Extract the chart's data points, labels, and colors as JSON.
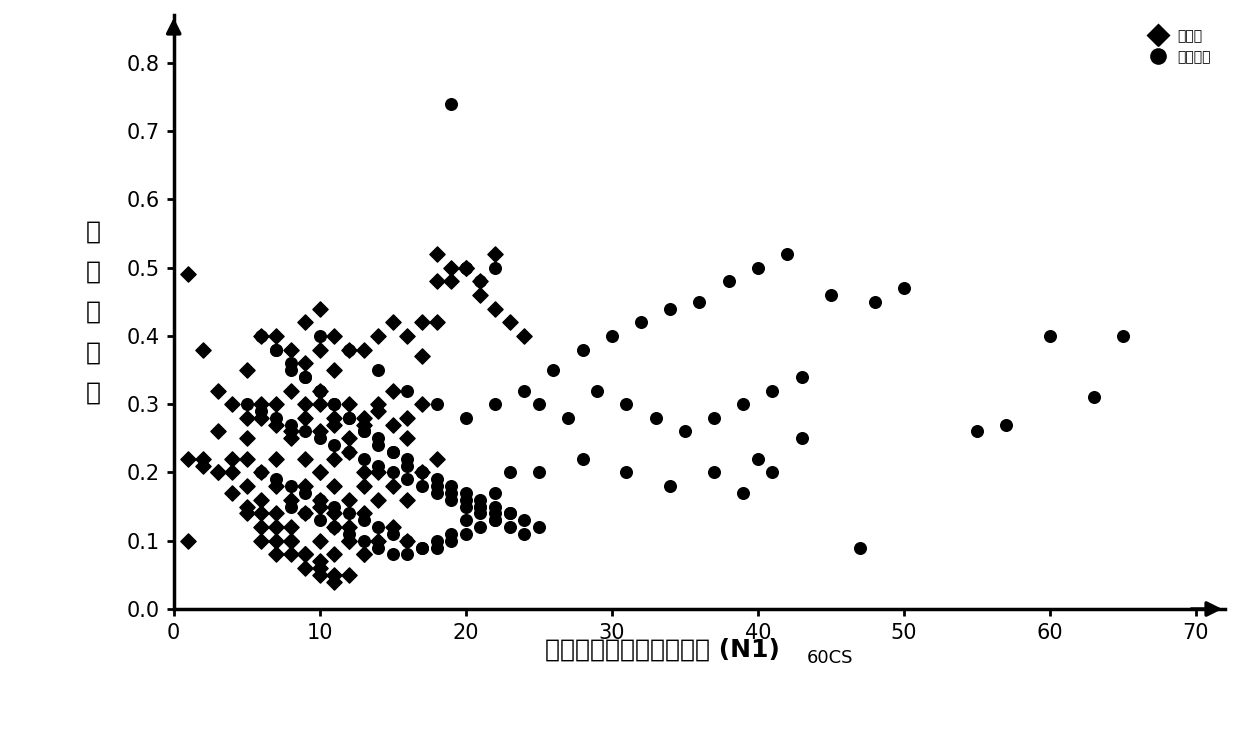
{
  "liquefaction_x": [
    1,
    2,
    3,
    5,
    5,
    6,
    6,
    7,
    7,
    7,
    8,
    8,
    8,
    9,
    9,
    9,
    9,
    10,
    10,
    10,
    10,
    10,
    10,
    11,
    11,
    11,
    11,
    12,
    12,
    12,
    13,
    13,
    13,
    14,
    14,
    15,
    15,
    16,
    16,
    17,
    17,
    18,
    19,
    20,
    21,
    22,
    3,
    4,
    5,
    6,
    7,
    8,
    9,
    10,
    11,
    12,
    13,
    14,
    15,
    16,
    17,
    18,
    4,
    5,
    6,
    7,
    8,
    9,
    10,
    11,
    12,
    13,
    14,
    15,
    16,
    17,
    18,
    5,
    6,
    7,
    8,
    9,
    10,
    11,
    12,
    13,
    14,
    6,
    7,
    8,
    9,
    10,
    11,
    12,
    13,
    14,
    15,
    16,
    7,
    8,
    9,
    10,
    11,
    12,
    13,
    1,
    2,
    3,
    4,
    5,
    6,
    7,
    8,
    9,
    10,
    11,
    12,
    1,
    2,
    3,
    4,
    5,
    6,
    7,
    8,
    9,
    10,
    11,
    18,
    19,
    20,
    21,
    22,
    23,
    24
  ],
  "liquefaction_y": [
    0.1,
    0.21,
    0.2,
    0.35,
    0.25,
    0.4,
    0.28,
    0.4,
    0.3,
    0.22,
    0.38,
    0.32,
    0.25,
    0.42,
    0.36,
    0.3,
    0.22,
    0.44,
    0.38,
    0.32,
    0.26,
    0.2,
    0.15,
    0.4,
    0.35,
    0.28,
    0.22,
    0.38,
    0.3,
    0.23,
    0.38,
    0.28,
    0.2,
    0.4,
    0.3,
    0.42,
    0.32,
    0.4,
    0.28,
    0.42,
    0.3,
    0.48,
    0.5,
    0.5,
    0.48,
    0.52,
    0.32,
    0.3,
    0.28,
    0.3,
    0.27,
    0.26,
    0.28,
    0.3,
    0.27,
    0.25,
    0.27,
    0.29,
    0.27,
    0.25,
    0.37,
    0.42,
    0.2,
    0.22,
    0.2,
    0.18,
    0.16,
    0.18,
    0.2,
    0.18,
    0.16,
    0.18,
    0.2,
    0.18,
    0.16,
    0.2,
    0.22,
    0.14,
    0.16,
    0.14,
    0.12,
    0.14,
    0.16,
    0.14,
    0.12,
    0.14,
    0.16,
    0.1,
    0.12,
    0.1,
    0.08,
    0.1,
    0.12,
    0.1,
    0.08,
    0.1,
    0.12,
    0.1,
    0.08,
    0.1,
    0.08,
    0.06,
    0.08,
    0.1,
    0.08,
    0.49,
    0.38,
    0.26,
    0.22,
    0.18,
    0.14,
    0.12,
    0.1,
    0.08,
    0.07,
    0.05,
    0.05,
    0.22,
    0.22,
    0.2,
    0.17,
    0.15,
    0.12,
    0.1,
    0.08,
    0.06,
    0.05,
    0.04,
    0.52,
    0.48,
    0.5,
    0.46,
    0.44,
    0.42,
    0.4
  ],
  "non_liquefaction_x": [
    6,
    7,
    8,
    9,
    10,
    11,
    12,
    13,
    14,
    15,
    16,
    17,
    18,
    19,
    20,
    21,
    22,
    23,
    24,
    25,
    5,
    6,
    7,
    8,
    9,
    10,
    11,
    12,
    13,
    14,
    15,
    16,
    17,
    18,
    19,
    20,
    21,
    22,
    23,
    24,
    6,
    7,
    8,
    9,
    10,
    11,
    12,
    13,
    14,
    15,
    16,
    17,
    18,
    19,
    20,
    21,
    22,
    23,
    7,
    8,
    9,
    10,
    11,
    12,
    13,
    14,
    15,
    16,
    17,
    18,
    19,
    20,
    21,
    22,
    8,
    9,
    10,
    11,
    12,
    13,
    14,
    15,
    16,
    17,
    18,
    19,
    20,
    21,
    22,
    23,
    10,
    12,
    14,
    16,
    18,
    20,
    22,
    24,
    26,
    28,
    30,
    32,
    34,
    36,
    38,
    40,
    42,
    25,
    27,
    29,
    31,
    33,
    35,
    37,
    39,
    41,
    43,
    25,
    28,
    31,
    34,
    37,
    40,
    48,
    50,
    55,
    57,
    60,
    63,
    65,
    39,
    41,
    43,
    45,
    47,
    19,
    20,
    20,
    21,
    22
  ],
  "non_liquefaction_y": [
    0.4,
    0.38,
    0.35,
    0.34,
    0.32,
    0.3,
    0.28,
    0.26,
    0.25,
    0.23,
    0.22,
    0.2,
    0.19,
    0.18,
    0.17,
    0.16,
    0.15,
    0.14,
    0.13,
    0.12,
    0.3,
    0.29,
    0.28,
    0.27,
    0.26,
    0.25,
    0.24,
    0.23,
    0.22,
    0.21,
    0.2,
    0.19,
    0.18,
    0.17,
    0.16,
    0.15,
    0.14,
    0.13,
    0.12,
    0.11,
    0.2,
    0.19,
    0.18,
    0.17,
    0.16,
    0.15,
    0.14,
    0.13,
    0.12,
    0.11,
    0.1,
    0.09,
    0.09,
    0.1,
    0.11,
    0.12,
    0.13,
    0.14,
    0.38,
    0.36,
    0.34,
    0.32,
    0.3,
    0.28,
    0.26,
    0.24,
    0.23,
    0.21,
    0.2,
    0.18,
    0.17,
    0.16,
    0.15,
    0.14,
    0.15,
    0.14,
    0.13,
    0.12,
    0.11,
    0.1,
    0.09,
    0.08,
    0.08,
    0.09,
    0.1,
    0.11,
    0.13,
    0.15,
    0.17,
    0.2,
    0.4,
    0.38,
    0.35,
    0.32,
    0.3,
    0.28,
    0.3,
    0.32,
    0.35,
    0.38,
    0.4,
    0.42,
    0.44,
    0.45,
    0.48,
    0.5,
    0.52,
    0.3,
    0.28,
    0.32,
    0.3,
    0.28,
    0.26,
    0.28,
    0.3,
    0.32,
    0.34,
    0.2,
    0.22,
    0.2,
    0.18,
    0.2,
    0.22,
    0.45,
    0.47,
    0.26,
    0.27,
    0.4,
    0.31,
    0.4,
    0.17,
    0.2,
    0.25,
    0.46,
    0.09,
    0.74,
    0.5,
    0.5,
    0.48,
    0.5
  ],
  "xlabel_main": "等效洁净砂修正标贯击数 (N1)",
  "xlabel_subscript": "60CS",
  "ylabel_chars": [
    "循",
    "环",
    "应",
    "力",
    "比"
  ],
  "legend_diamond": "液化点",
  "legend_circle": "不液化点",
  "xlim": [
    0,
    72
  ],
  "ylim": [
    0,
    0.87
  ],
  "xticks": [
    0,
    10,
    20,
    30,
    40,
    50,
    60,
    70
  ],
  "yticks": [
    0.0,
    0.1,
    0.2,
    0.3,
    0.4,
    0.5,
    0.6,
    0.7,
    0.8
  ],
  "background_color": "#ffffff",
  "marker_color": "#000000",
  "marker_size_diamond": 60,
  "marker_size_circle": 70
}
